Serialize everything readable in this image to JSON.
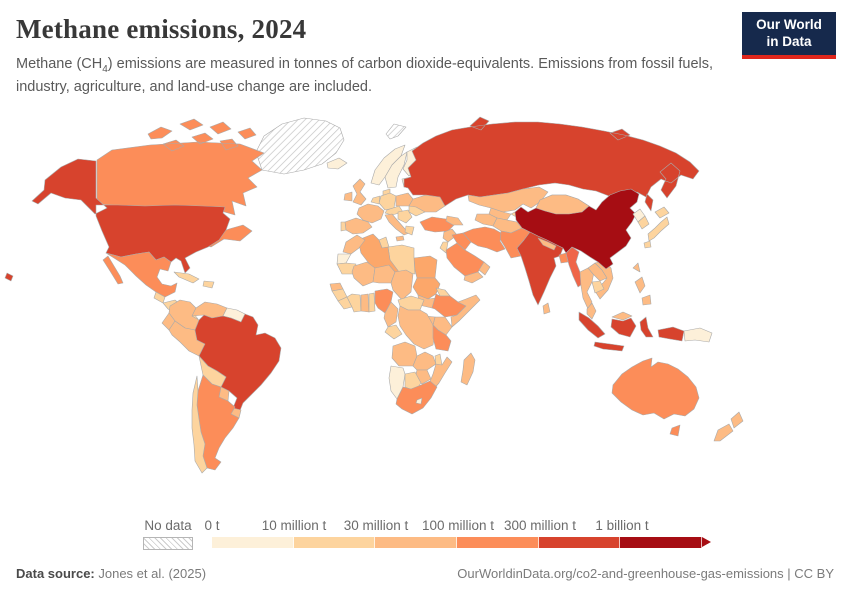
{
  "header": {
    "title": "Methane emissions, 2024",
    "subtitle_pre": "Methane (CH",
    "subtitle_sub": "4",
    "subtitle_post": ") emissions are measured in tonnes of carbon dioxide-equivalents. Emissions from fossil fuels, industry, agriculture, and land-use change are included."
  },
  "logo": {
    "line1": "Our World",
    "line2": "in Data",
    "bg_color": "#16294c",
    "accent_color": "#e0261c"
  },
  "legend": {
    "no_data_label": "No data"
  },
  "footer": {
    "source_label": "Data source:",
    "source_value": " Jones et al. (2025)",
    "credit": "OurWorldinData.org/co2-and-greenhouse-gas-emissions | CC BY"
  },
  "chart_data": {
    "type": "choropleth",
    "title": "Methane emissions, 2024",
    "unit": "tonnes of carbon dioxide-equivalents",
    "no_data_label": "No data",
    "legend_bins": [
      {
        "threshold_label": "0 t",
        "color": "#fdf0d9"
      },
      {
        "threshold_label": "10 million t",
        "color": "#fdd49e"
      },
      {
        "threshold_label": "30 million t",
        "color": "#fdbb84"
      },
      {
        "threshold_label": "100 million t",
        "color": "#fc8d59"
      },
      {
        "threshold_label": "300 million t",
        "color": "#d7432d"
      },
      {
        "threshold_label": "1 billion t",
        "color": "#a60d13"
      }
    ],
    "countries": [
      {
        "id": "greenland",
        "name": "Greenland",
        "color": "pattern:no-data"
      },
      {
        "id": "svalbard",
        "name": "Svalbard",
        "color": "pattern:no-data"
      },
      {
        "id": "iceland",
        "name": "Iceland",
        "color": "#fdf0d9"
      },
      {
        "id": "canada",
        "name": "Canada",
        "color": "#fc8d59"
      },
      {
        "id": "united-states",
        "name": "United States",
        "color": "#d7432d"
      },
      {
        "id": "mexico",
        "name": "Mexico",
        "color": "#fc8d59"
      },
      {
        "id": "guatemala",
        "name": "Guatemala",
        "color": "#fdd49e"
      },
      {
        "id": "honduras-nicaragua",
        "name": "Honduras & Nicaragua",
        "color": "#fdd49e"
      },
      {
        "id": "costa-rica-panama",
        "name": "Costa Rica & Panama",
        "color": "#fdd49e"
      },
      {
        "id": "cuba",
        "name": "Cuba",
        "color": "#fdd49e"
      },
      {
        "id": "hispaniola",
        "name": "Haiti & Dominican Republic",
        "color": "#fdd49e"
      },
      {
        "id": "colombia",
        "name": "Colombia",
        "color": "#fdbb84"
      },
      {
        "id": "venezuela",
        "name": "Venezuela",
        "color": "#fdbb84"
      },
      {
        "id": "guyanas",
        "name": "Guyana & Suriname",
        "color": "#fdf0d9"
      },
      {
        "id": "ecuador",
        "name": "Ecuador",
        "color": "#fdbb84"
      },
      {
        "id": "peru",
        "name": "Peru",
        "color": "#fdbb84"
      },
      {
        "id": "brazil",
        "name": "Brazil",
        "color": "#d7432d"
      },
      {
        "id": "bolivia",
        "name": "Bolivia",
        "color": "#fdd49e"
      },
      {
        "id": "paraguay",
        "name": "Paraguay",
        "color": "#fdbb84"
      },
      {
        "id": "uruguay",
        "name": "Uruguay",
        "color": "#fdbb84"
      },
      {
        "id": "argentina",
        "name": "Argentina",
        "color": "#fc8d59"
      },
      {
        "id": "chile",
        "name": "Chile",
        "color": "#fdd49e"
      },
      {
        "id": "norway",
        "name": "Norway",
        "color": "#fdf0d9"
      },
      {
        "id": "sweden",
        "name": "Sweden",
        "color": "#fdf0d9"
      },
      {
        "id": "finland",
        "name": "Finland",
        "color": "#fdf0d9"
      },
      {
        "id": "denmark",
        "name": "Denmark",
        "color": "#fdd49e"
      },
      {
        "id": "united-kingdom",
        "name": "United Kingdom",
        "color": "#fdbb84"
      },
      {
        "id": "ireland",
        "name": "Ireland",
        "color": "#fdbb84"
      },
      {
        "id": "france",
        "name": "France",
        "color": "#fdbb84"
      },
      {
        "id": "spain",
        "name": "Spain",
        "color": "#fdbb84"
      },
      {
        "id": "portugal",
        "name": "Portugal",
        "color": "#fdd49e"
      },
      {
        "id": "germany",
        "name": "Germany",
        "color": "#fdd49e"
      },
      {
        "id": "benelux",
        "name": "Belgium & Netherlands",
        "color": "#fdd49e"
      },
      {
        "id": "poland",
        "name": "Poland",
        "color": "#fdbb84"
      },
      {
        "id": "czechia-austria",
        "name": "Czechia & Austria",
        "color": "#fdd49e"
      },
      {
        "id": "italy",
        "name": "Italy",
        "color": "#fdbb84"
      },
      {
        "id": "balkans",
        "name": "Balkans",
        "color": "#fdd49e"
      },
      {
        "id": "romania",
        "name": "Romania",
        "color": "#fdd49e"
      },
      {
        "id": "greece",
        "name": "Greece",
        "color": "#fdd49e"
      },
      {
        "id": "ukraine",
        "name": "Ukraine",
        "color": "#fdbb84"
      },
      {
        "id": "belarus",
        "name": "Belarus",
        "color": "#fdd49e"
      },
      {
        "id": "baltics",
        "name": "Baltic states",
        "color": "#fdf0d9"
      },
      {
        "id": "turkey",
        "name": "Turkey",
        "color": "#fc8d59"
      },
      {
        "id": "caucasus",
        "name": "Caucasus",
        "color": "#fdbb84"
      },
      {
        "id": "russia",
        "name": "Russia",
        "color": "#d7432d"
      },
      {
        "id": "kazakhstan",
        "name": "Kazakhstan",
        "color": "#fdbb84"
      },
      {
        "id": "uzbekistan",
        "name": "Uzbekistan",
        "color": "#fdbb84"
      },
      {
        "id": "turkmenistan",
        "name": "Turkmenistan",
        "color": "#fdbb84"
      },
      {
        "id": "kyrgyzstan-tajikistan",
        "name": "Kyrgyzstan & Tajikistan",
        "color": "#fdd49e"
      },
      {
        "id": "afghanistan",
        "name": "Afghanistan",
        "color": "#fdbb84"
      },
      {
        "id": "pakistan",
        "name": "Pakistan",
        "color": "#fc8d59"
      },
      {
        "id": "india",
        "name": "India",
        "color": "#d7432d"
      },
      {
        "id": "nepal",
        "name": "Nepal",
        "color": "#fdbb84"
      },
      {
        "id": "bangladesh",
        "name": "Bangladesh",
        "color": "#fc8d59"
      },
      {
        "id": "sri-lanka",
        "name": "Sri Lanka",
        "color": "#fdbb84"
      },
      {
        "id": "myanmar",
        "name": "Myanmar",
        "color": "#ef6548"
      },
      {
        "id": "thailand",
        "name": "Thailand",
        "color": "#fdbb84"
      },
      {
        "id": "laos",
        "name": "Laos",
        "color": "#fdbb84"
      },
      {
        "id": "vietnam",
        "name": "Vietnam",
        "color": "#fdbb84"
      },
      {
        "id": "cambodia",
        "name": "Cambodia",
        "color": "#fdd49e"
      },
      {
        "id": "malaysia",
        "name": "Malaysia",
        "color": "#fdbb84"
      },
      {
        "id": "indonesia",
        "name": "Indonesia",
        "color": "#d7432d"
      },
      {
        "id": "papua-new-guinea",
        "name": "Papua New Guinea",
        "color": "#fdf0d9"
      },
      {
        "id": "philippines",
        "name": "Philippines",
        "color": "#fdbb84"
      },
      {
        "id": "taiwan",
        "name": "Taiwan",
        "color": "#fdbb84"
      },
      {
        "id": "china",
        "name": "China",
        "color": "#a60d13"
      },
      {
        "id": "mongolia",
        "name": "Mongolia",
        "color": "#fdbb84"
      },
      {
        "id": "north-korea",
        "name": "North Korea",
        "color": "#fdf0d9"
      },
      {
        "id": "south-korea",
        "name": "South Korea",
        "color": "#fdd49e"
      },
      {
        "id": "japan",
        "name": "Japan",
        "color": "#fdd49e"
      },
      {
        "id": "syria-levant",
        "name": "Syria & Levant",
        "color": "#fdbb84"
      },
      {
        "id": "iraq",
        "name": "Iraq",
        "color": "#fc8d59"
      },
      {
        "id": "jordan-israel",
        "name": "Jordan & Israel",
        "color": "#fdd49e"
      },
      {
        "id": "saudi-arabia",
        "name": "Saudi Arabia",
        "color": "#fc8d59"
      },
      {
        "id": "yemen",
        "name": "Yemen",
        "color": "#fdbb84"
      },
      {
        "id": "oman",
        "name": "Oman",
        "color": "#fdbb84"
      },
      {
        "id": "iran",
        "name": "Iran",
        "color": "#fc8d59"
      },
      {
        "id": "egypt",
        "name": "Egypt",
        "color": "#fca76a"
      },
      {
        "id": "libya",
        "name": "Libya",
        "color": "#fdd49e"
      },
      {
        "id": "tunisia",
        "name": "Tunisia",
        "color": "#fdd49e"
      },
      {
        "id": "algeria",
        "name": "Algeria",
        "color": "#fca76a"
      },
      {
        "id": "morocco",
        "name": "Morocco",
        "color": "#fdbb84"
      },
      {
        "id": "western-sahara",
        "name": "Western Sahara",
        "color": "#fdf0d9"
      },
      {
        "id": "mauritania",
        "name": "Mauritania",
        "color": "#fdd49e"
      },
      {
        "id": "mali",
        "name": "Mali",
        "color": "#fdbb84"
      },
      {
        "id": "niger",
        "name": "Niger",
        "color": "#fdbb84"
      },
      {
        "id": "chad",
        "name": "Chad",
        "color": "#fdbb84"
      },
      {
        "id": "sudan",
        "name": "Sudan",
        "color": "#fca76a"
      },
      {
        "id": "south-sudan",
        "name": "South Sudan",
        "color": "#fdbb84"
      },
      {
        "id": "eritrea",
        "name": "Eritrea & Djibouti",
        "color": "#fdd49e"
      },
      {
        "id": "ethiopia",
        "name": "Ethiopia",
        "color": "#fc8d59"
      },
      {
        "id": "somalia",
        "name": "Somalia",
        "color": "#fdbb84"
      },
      {
        "id": "kenya",
        "name": "Kenya",
        "color": "#fdbb84"
      },
      {
        "id": "uganda",
        "name": "Uganda",
        "color": "#fdbb84"
      },
      {
        "id": "senegal",
        "name": "Senegal",
        "color": "#fdbb84"
      },
      {
        "id": "guinea",
        "name": "Guinea",
        "color": "#fdd49e"
      },
      {
        "id": "sierra-leone-liberia",
        "name": "Sierra Leone & Liberia",
        "color": "#fdd49e"
      },
      {
        "id": "ivory-coast",
        "name": "Cote d'Ivoire",
        "color": "#fdd49e"
      },
      {
        "id": "ghana",
        "name": "Ghana",
        "color": "#fdbb84"
      },
      {
        "id": "togo-benin",
        "name": "Togo & Benin",
        "color": "#fdd49e"
      },
      {
        "id": "nigeria",
        "name": "Nigeria",
        "color": "#fc8d59"
      },
      {
        "id": "cameroon",
        "name": "Cameroon",
        "color": "#fdbb84"
      },
      {
        "id": "central-african-republic",
        "name": "Central African Republic",
        "color": "#fdd49e"
      },
      {
        "id": "gabon-congo",
        "name": "Gabon & Congo",
        "color": "#fdd49e"
      },
      {
        "id": "dr-congo",
        "name": "Democratic Republic of Congo",
        "color": "#fdbb84"
      },
      {
        "id": "tanzania",
        "name": "Tanzania",
        "color": "#fc8d59"
      },
      {
        "id": "angola",
        "name": "Angola",
        "color": "#fdbb84"
      },
      {
        "id": "zambia",
        "name": "Zambia",
        "color": "#fdbb84"
      },
      {
        "id": "malawi",
        "name": "Malawi",
        "color": "#fdd49e"
      },
      {
        "id": "mozambique",
        "name": "Mozambique",
        "color": "#fdbb84"
      },
      {
        "id": "zimbabwe",
        "name": "Zimbabwe",
        "color": "#fdbb84"
      },
      {
        "id": "botswana",
        "name": "Botswana",
        "color": "#fdd49e"
      },
      {
        "id": "namibia",
        "name": "Namibia",
        "color": "#fdf0d9"
      },
      {
        "id": "south-africa",
        "name": "South Africa",
        "color": "#fc8d59"
      },
      {
        "id": "lesotho",
        "name": "Lesotho",
        "color": "#fdf0d9"
      },
      {
        "id": "madagascar",
        "name": "Madagascar",
        "color": "#fdbb84"
      },
      {
        "id": "australia",
        "name": "Australia",
        "color": "#fc8d59"
      },
      {
        "id": "new-zealand",
        "name": "New Zealand",
        "color": "#fdbb84"
      }
    ]
  }
}
